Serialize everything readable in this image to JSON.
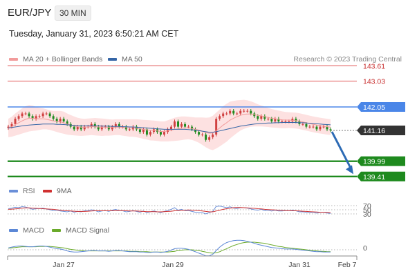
{
  "header": {
    "pair": "EUR/JPY",
    "timeframe": "30 MIN",
    "datetime": "Tuesday, January 31, 2023 6:50:21 AM CET"
  },
  "legend": {
    "ma20_label": "MA 20 + Bollinger Bands",
    "ma50_label": "MA 50",
    "rsi_label": "RSI",
    "rsi_ma_label": "9MA",
    "macd_label": "MACD",
    "macd_signal_label": "MACD Signal",
    "credit": "Research © 2023 Trading Central"
  },
  "colors": {
    "ma20": "#f29b9b",
    "ma50": "#3565a6",
    "resistance_red": "#e05050",
    "pivot_blue": "#4a86e8",
    "support_green": "#1e8a1e",
    "current_price_box": "#333333",
    "arrow": "#2d6bb5",
    "rsi": "#6a8fd8",
    "rsi_ma": "#d03030",
    "macd": "#5b87d6",
    "macd_signal": "#6aaa2a",
    "candle_up": "#d04040",
    "candle_down": "#1e8a1e",
    "bollinger_fill": "#fde1e1"
  },
  "chart_data": {
    "type": "candlestick",
    "instrument": "EUR/JPY",
    "timeframe": "30 MIN",
    "x_tick_labels": [
      "Jan 27",
      "Jan 29",
      "Jan 31",
      "Feb 7"
    ],
    "price_range": [
      139.3,
      143.75
    ],
    "current_price": 141.16,
    "levels": [
      {
        "value": 143.61,
        "label": "143.61",
        "kind": "resistance"
      },
      {
        "value": 143.03,
        "label": "143.03",
        "kind": "resistance"
      },
      {
        "value": 142.05,
        "label": "142.05",
        "kind": "pivot"
      },
      {
        "value": 141.16,
        "label": "141.16",
        "kind": "current"
      },
      {
        "value": 139.99,
        "label": "139.99",
        "kind": "support"
      },
      {
        "value": 139.41,
        "label": "139.41",
        "kind": "support"
      }
    ],
    "forecast": {
      "from": 141.16,
      "to": 139.5,
      "direction": "down"
    },
    "close_series": [
      141.3,
      141.4,
      141.6,
      141.7,
      141.8,
      141.8,
      141.7,
      141.6,
      141.7,
      141.7,
      141.8,
      141.8,
      141.7,
      141.6,
      141.5,
      141.6,
      141.5,
      141.4,
      141.3,
      141.2,
      141.3,
      141.2,
      141.3,
      141.3,
      141.4,
      141.3,
      141.2,
      141.3,
      141.3,
      141.2,
      141.3,
      141.4,
      141.3,
      141.3,
      141.2,
      141.2,
      141.3,
      141.2,
      141.1,
      141.2,
      141.0,
      141.1,
      141.2,
      141.1,
      141.0,
      141.1,
      141.2,
      141.3,
      141.5,
      141.3,
      141.4,
      141.3,
      141.3,
      141.2,
      141.1,
      141.0,
      141.0,
      140.8,
      140.9,
      141.0,
      141.6,
      141.7,
      141.8,
      141.8,
      141.9,
      141.8,
      141.8,
      141.9,
      141.9,
      141.9,
      141.8,
      141.7,
      141.6,
      141.7,
      141.6,
      141.6,
      141.5,
      141.6,
      141.5,
      141.5,
      141.5,
      141.5,
      141.6,
      141.5,
      141.4,
      141.4,
      141.3,
      141.3,
      141.3,
      141.2,
      141.3,
      141.3,
      141.2,
      141.16
    ],
    "ma20": [
      141.25,
      141.3,
      141.38,
      141.45,
      141.52,
      141.58,
      141.62,
      141.62,
      141.6,
      141.6,
      141.6,
      141.58,
      141.55,
      141.52,
      141.5,
      141.48,
      141.45,
      141.4,
      141.36,
      141.33,
      141.3,
      141.28,
      141.28,
      141.29,
      141.3,
      141.3,
      141.29,
      141.28,
      141.28,
      141.27,
      141.27,
      141.28,
      141.28,
      141.27,
      141.26,
      141.25,
      141.25,
      141.24,
      141.22,
      141.2,
      141.18,
      141.16,
      141.15,
      141.14,
      141.12,
      141.12,
      141.14,
      141.17,
      141.2,
      141.22,
      141.24,
      141.25,
      141.25,
      141.23,
      141.2,
      141.17,
      141.13,
      141.08,
      141.05,
      141.06,
      141.15,
      141.25,
      141.36,
      141.45,
      141.55,
      141.62,
      141.68,
      141.73,
      141.77,
      141.78,
      141.78,
      141.76,
      141.73,
      141.71,
      141.68,
      141.65,
      141.62,
      141.6,
      141.58,
      141.56,
      141.55,
      141.55,
      141.54,
      141.53,
      141.51,
      141.48,
      141.45,
      141.42,
      141.39,
      141.36,
      141.34,
      141.32,
      141.3,
      141.28
    ],
    "ma50": [
      141.25,
      141.27,
      141.29,
      141.31,
      141.33,
      141.35,
      141.36,
      141.37,
      141.38,
      141.39,
      141.4,
      141.4,
      141.4,
      141.4,
      141.39,
      141.39,
      141.38,
      141.37,
      141.36,
      141.35,
      141.34,
      141.33,
      141.33,
      141.33,
      141.33,
      141.33,
      141.33,
      141.32,
      141.32,
      141.32,
      141.31,
      141.31,
      141.31,
      141.3,
      141.3,
      141.29,
      141.29,
      141.28,
      141.27,
      141.26,
      141.25,
      141.24,
      141.23,
      141.22,
      141.21,
      141.2,
      141.2,
      141.2,
      141.2,
      141.2,
      141.2,
      141.2,
      141.19,
      141.18,
      141.17,
      141.15,
      141.13,
      141.11,
      141.09,
      141.09,
      141.11,
      141.14,
      141.17,
      141.2,
      141.23,
      141.26,
      141.29,
      141.32,
      141.34,
      141.36,
      141.38,
      141.4,
      141.41,
      141.42,
      141.43,
      141.44,
      141.44,
      141.45,
      141.45,
      141.46,
      141.46,
      141.46,
      141.46,
      141.46,
      141.45,
      141.45,
      141.44,
      141.43,
      141.42,
      141.41,
      141.4,
      141.39,
      141.38,
      141.37
    ],
    "bollinger_width": [
      0.35,
      0.38,
      0.42,
      0.45,
      0.48,
      0.5,
      0.5,
      0.48,
      0.45,
      0.42,
      0.4,
      0.38,
      0.37,
      0.38,
      0.4,
      0.42,
      0.42,
      0.4,
      0.38,
      0.36,
      0.34,
      0.33,
      0.32,
      0.32,
      0.32,
      0.33,
      0.33,
      0.33,
      0.32,
      0.31,
      0.3,
      0.3,
      0.3,
      0.31,
      0.32,
      0.33,
      0.33,
      0.34,
      0.35,
      0.36,
      0.37,
      0.38,
      0.38,
      0.38,
      0.38,
      0.38,
      0.4,
      0.42,
      0.44,
      0.45,
      0.45,
      0.44,
      0.43,
      0.43,
      0.45,
      0.48,
      0.52,
      0.56,
      0.6,
      0.65,
      0.68,
      0.7,
      0.72,
      0.72,
      0.7,
      0.66,
      0.62,
      0.58,
      0.55,
      0.52,
      0.48,
      0.45,
      0.42,
      0.4,
      0.38,
      0.36,
      0.35,
      0.34,
      0.33,
      0.32,
      0.31,
      0.3,
      0.3,
      0.3,
      0.3,
      0.3,
      0.3,
      0.3,
      0.3,
      0.3,
      0.3,
      0.3,
      0.3,
      0.3
    ],
    "rsi": {
      "levels": [
        70,
        50,
        30
      ],
      "level_labels": [
        "70",
        "50",
        "30"
      ],
      "range": [
        0,
        100
      ],
      "values": [
        55,
        58,
        62,
        60,
        65,
        63,
        58,
        52,
        55,
        56,
        58,
        54,
        50,
        46,
        48,
        44,
        42,
        40,
        44,
        38,
        42,
        40,
        45,
        46,
        50,
        46,
        40,
        44,
        46,
        42,
        48,
        52,
        46,
        45,
        40,
        42,
        46,
        42,
        38,
        44,
        36,
        40,
        44,
        40,
        36,
        42,
        46,
        52,
        60,
        48,
        52,
        46,
        46,
        42,
        38,
        36,
        36,
        30,
        36,
        42,
        66,
        68,
        64,
        60,
        64,
        58,
        56,
        60,
        60,
        58,
        54,
        50,
        48,
        52,
        46,
        48,
        44,
        48,
        44,
        44,
        46,
        45,
        48,
        45,
        40,
        40,
        38,
        36,
        38,
        34,
        38,
        38,
        34,
        32
      ],
      "ma9": [
        52,
        53,
        54,
        56,
        58,
        59,
        59,
        58,
        57,
        56,
        55,
        54,
        53,
        52,
        50,
        48,
        46,
        45,
        44,
        43,
        42,
        42,
        42,
        43,
        44,
        45,
        45,
        45,
        45,
        45,
        45,
        46,
        46,
        46,
        45,
        44,
        44,
        44,
        43,
        42,
        41,
        41,
        41,
        40,
        40,
        41,
        42,
        43,
        45,
        46,
        47,
        48,
        49,
        48,
        47,
        46,
        44,
        42,
        40,
        40,
        44,
        48,
        52,
        55,
        58,
        60,
        61,
        61,
        60,
        59,
        58,
        57,
        55,
        54,
        52,
        51,
        50,
        49,
        48,
        47,
        46,
        46,
        45,
        45,
        44,
        43,
        42,
        41,
        40,
        39,
        38,
        38,
        37,
        36
      ]
    },
    "macd": {
      "zero_label": "0",
      "range": [
        -0.3,
        0.35
      ],
      "macd": [
        0.05,
        0.07,
        0.09,
        0.1,
        0.1,
        0.09,
        0.08,
        0.08,
        0.09,
        0.1,
        0.1,
        0.09,
        0.07,
        0.05,
        0.03,
        0.02,
        0.0,
        -0.03,
        -0.05,
        -0.06,
        -0.06,
        -0.05,
        -0.04,
        -0.03,
        -0.02,
        -0.02,
        -0.03,
        -0.03,
        -0.03,
        -0.04,
        -0.03,
        -0.02,
        -0.02,
        -0.03,
        -0.04,
        -0.05,
        -0.05,
        -0.05,
        -0.06,
        -0.06,
        -0.07,
        -0.07,
        -0.06,
        -0.06,
        -0.07,
        -0.06,
        -0.04,
        -0.01,
        0.03,
        0.04,
        0.04,
        0.03,
        0.01,
        -0.02,
        -0.05,
        -0.09,
        -0.12,
        -0.16,
        -0.16,
        -0.12,
        -0.02,
        0.07,
        0.14,
        0.19,
        0.22,
        0.24,
        0.25,
        0.25,
        0.24,
        0.22,
        0.2,
        0.17,
        0.14,
        0.12,
        0.1,
        0.08,
        0.06,
        0.05,
        0.04,
        0.03,
        0.02,
        0.02,
        0.02,
        0.01,
        0.0,
        -0.01,
        -0.02,
        -0.03,
        -0.04,
        -0.05,
        -0.05,
        -0.06,
        -0.06,
        -0.06
      ],
      "signal": [
        0.04,
        0.05,
        0.06,
        0.07,
        0.08,
        0.08,
        0.08,
        0.08,
        0.08,
        0.09,
        0.09,
        0.09,
        0.09,
        0.08,
        0.07,
        0.06,
        0.05,
        0.03,
        0.01,
        0.0,
        -0.01,
        -0.02,
        -0.03,
        -0.03,
        -0.03,
        -0.03,
        -0.03,
        -0.03,
        -0.03,
        -0.03,
        -0.03,
        -0.03,
        -0.03,
        -0.03,
        -0.03,
        -0.04,
        -0.04,
        -0.04,
        -0.05,
        -0.05,
        -0.05,
        -0.06,
        -0.06,
        -0.06,
        -0.06,
        -0.06,
        -0.06,
        -0.05,
        -0.04,
        -0.02,
        -0.01,
        0.0,
        0.0,
        0.0,
        -0.01,
        -0.02,
        -0.04,
        -0.06,
        -0.08,
        -0.09,
        -0.08,
        -0.05,
        -0.01,
        0.03,
        0.07,
        0.11,
        0.14,
        0.17,
        0.19,
        0.2,
        0.2,
        0.2,
        0.19,
        0.18,
        0.17,
        0.15,
        0.13,
        0.11,
        0.09,
        0.08,
        0.06,
        0.05,
        0.04,
        0.03,
        0.02,
        0.01,
        0.0,
        -0.01,
        -0.02,
        -0.03,
        -0.04,
        -0.04,
        -0.05,
        -0.05
      ]
    }
  }
}
